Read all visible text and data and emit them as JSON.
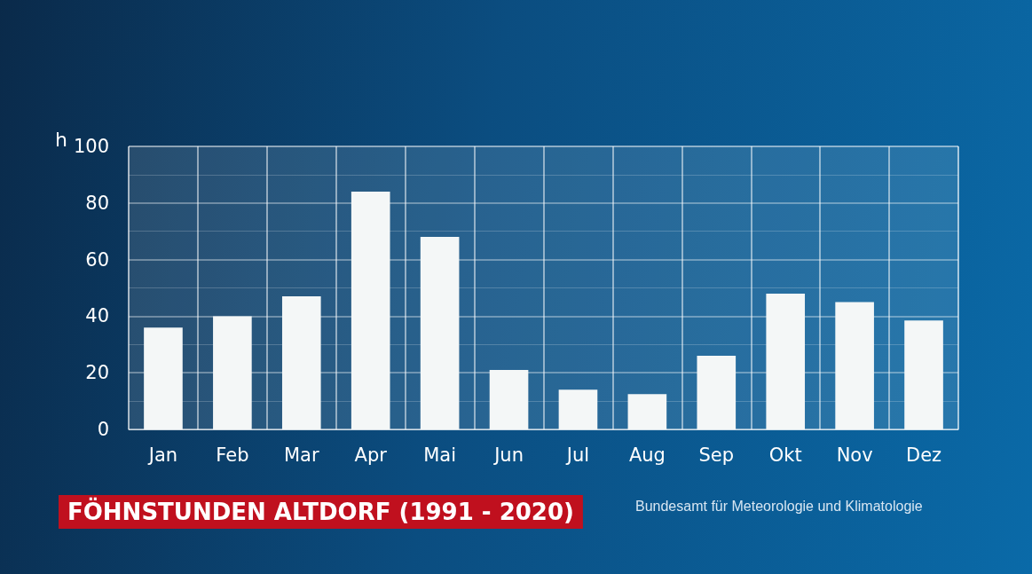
{
  "chart_data": {
    "type": "bar",
    "title": "FÖHNSTUNDEN ALTDORF (1991 - 2020)",
    "ylabel": "h",
    "annotations": [
      "Bundesamt für Meteorologie und Klimatologie"
    ],
    "categories": [
      "Jan",
      "Feb",
      "Mar",
      "Apr",
      "Mai",
      "Jun",
      "Jul",
      "Aug",
      "Sep",
      "Okt",
      "Nov",
      "Dez"
    ],
    "values": [
      36,
      40,
      47,
      84,
      68,
      21,
      14,
      12.5,
      26,
      48,
      45,
      38.5
    ],
    "color": "#f4f7f7",
    "ylim": [
      0,
      100
    ],
    "yticks": [
      0,
      20,
      40,
      60,
      80,
      100
    ],
    "grid": true
  }
}
